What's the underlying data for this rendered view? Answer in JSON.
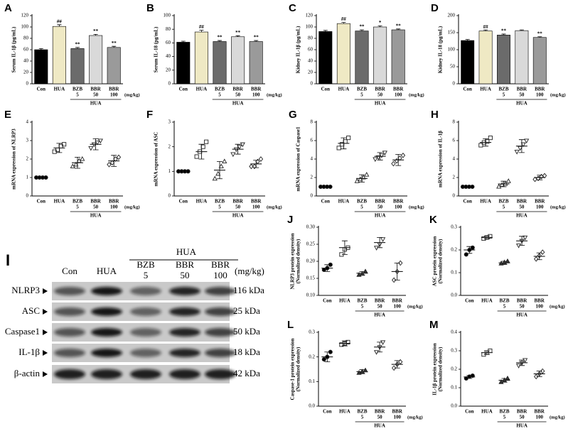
{
  "chart_data": [
    {
      "panel": "A",
      "type": "bar",
      "ylabel": "Serum IL-1β (pg/mL)",
      "categories": [
        "Con",
        "HUA",
        "BZB",
        "BBR",
        "BBR"
      ],
      "doses": [
        null,
        null,
        "5",
        "50",
        "100"
      ],
      "dose_unit": "(mg/kg)",
      "group_label": "HUA",
      "values": [
        60,
        101,
        62,
        85,
        64
      ],
      "errors": [
        2,
        3,
        2,
        2,
        2
      ],
      "annotations": [
        null,
        "##",
        "**",
        "**",
        "**"
      ],
      "colors": [
        "#000000",
        "#efe9c4",
        "#6b6b6b",
        "#d9d9d9",
        "#9a9a9a"
      ],
      "ylim": [
        0,
        120
      ],
      "yticks": [
        0,
        20,
        40,
        60,
        80,
        100,
        120
      ]
    },
    {
      "panel": "B",
      "type": "bar",
      "ylabel": "Serum IL-18 (pg/mL)",
      "categories": [
        "Con",
        "HUA",
        "BZB",
        "BBR",
        "BBR"
      ],
      "doses": [
        null,
        null,
        "5",
        "50",
        "100"
      ],
      "dose_unit": "(mg/kg)",
      "group_label": "HUA",
      "values": [
        61,
        76,
        62,
        69,
        62
      ],
      "errors": [
        1.5,
        2.5,
        1.5,
        1.5,
        1.5
      ],
      "annotations": [
        null,
        "##",
        "**",
        "**",
        "**"
      ],
      "colors": [
        "#000000",
        "#efe9c4",
        "#6b6b6b",
        "#d9d9d9",
        "#9a9a9a"
      ],
      "ylim": [
        0,
        100
      ],
      "yticks": [
        0,
        20,
        40,
        60,
        80,
        100
      ]
    },
    {
      "panel": "C",
      "type": "bar",
      "ylabel": "Kidney IL-1β (pg/mL)",
      "categories": [
        "Con",
        "HUA",
        "BZB",
        "BBR",
        "BBR"
      ],
      "doses": [
        null,
        null,
        "5",
        "50",
        "100"
      ],
      "dose_unit": "(mg/kg)",
      "group_label": "HUA",
      "values": [
        92,
        106,
        93,
        100,
        95
      ],
      "errors": [
        2,
        2,
        2,
        2,
        1.5
      ],
      "annotations": [
        null,
        "##",
        "**",
        "*",
        "**"
      ],
      "colors": [
        "#000000",
        "#efe9c4",
        "#6b6b6b",
        "#d9d9d9",
        "#9a9a9a"
      ],
      "ylim": [
        0,
        120
      ],
      "yticks": [
        0,
        20,
        40,
        60,
        80,
        100,
        120
      ]
    },
    {
      "panel": "D",
      "type": "bar",
      "ylabel": "Kidney IL-18 (pg/mL)",
      "categories": [
        "Con",
        "HUA",
        "BZB",
        "BBR",
        "BBR"
      ],
      "doses": [
        null,
        null,
        "5",
        "50",
        "100"
      ],
      "dose_unit": "(mg/kg)",
      "group_label": "HUA",
      "values": [
        127,
        155,
        143,
        156,
        136
      ],
      "errors": [
        3,
        3,
        3,
        2,
        2
      ],
      "annotations": [
        null,
        "##",
        "**",
        null,
        "**"
      ],
      "colors": [
        "#000000",
        "#efe9c4",
        "#6b6b6b",
        "#d9d9d9",
        "#9a9a9a"
      ],
      "ylim": [
        0,
        200
      ],
      "yticks": [
        0,
        50,
        100,
        150,
        200
      ]
    },
    {
      "panel": "E",
      "type": "dot",
      "ylabel": "mRNA expression of NLRP3",
      "categories": [
        "Con",
        "HUA",
        "BZB",
        "BBR",
        "BBR"
      ],
      "doses": [
        null,
        null,
        "5",
        "50",
        "100"
      ],
      "dose_unit": "(mg/kg)",
      "group_label": "HUA",
      "markers": [
        "circle",
        "square",
        "triangle",
        "triangle-down",
        "diamond"
      ],
      "marker_fills": [
        "#000000",
        "none",
        "none",
        "none",
        "none"
      ],
      "groups": [
        {
          "points": [
            1,
            1,
            1,
            1
          ],
          "mean": 1,
          "sd": 0
        },
        {
          "points": [
            2.4,
            2.5,
            2.7,
            2.8
          ],
          "mean": 2.6,
          "sd": 0.25
        },
        {
          "points": [
            1.6,
            1.7,
            1.9,
            2.0
          ],
          "mean": 1.8,
          "sd": 0.3
        },
        {
          "points": [
            2.6,
            2.8,
            2.9,
            3.0
          ],
          "mean": 2.8,
          "sd": 0.3
        },
        {
          "points": [
            1.7,
            1.8,
            2.0,
            2.1
          ],
          "mean": 1.9,
          "sd": 0.3
        }
      ],
      "ylim": [
        0,
        4
      ],
      "yticks": [
        0,
        1,
        2,
        3,
        4
      ]
    },
    {
      "panel": "F",
      "type": "dot",
      "ylabel": "mRNA expression of ASC",
      "categories": [
        "Con",
        "HUA",
        "BZB",
        "BBR",
        "BBR"
      ],
      "doses": [
        null,
        null,
        "5",
        "50",
        "100"
      ],
      "dose_unit": "(mg/kg)",
      "group_label": "HUA",
      "markers": [
        "circle",
        "square",
        "triangle",
        "triangle-down",
        "diamond"
      ],
      "marker_fills": [
        "#000000",
        "none",
        "none",
        "none",
        "none"
      ],
      "groups": [
        {
          "points": [
            1,
            1,
            1,
            1
          ],
          "mean": 1,
          "sd": 0
        },
        {
          "points": [
            1.6,
            1.8,
            2.0,
            2.2
          ],
          "mean": 1.8,
          "sd": 0.3
        },
        {
          "points": [
            0.7,
            0.9,
            1.2,
            1.4
          ],
          "mean": 1.05,
          "sd": 0.35
        },
        {
          "points": [
            1.7,
            1.9,
            2.0,
            2.1
          ],
          "mean": 1.9,
          "sd": 0.2
        },
        {
          "points": [
            1.2,
            1.2,
            1.4,
            1.5
          ],
          "mean": 1.3,
          "sd": 0.15
        }
      ],
      "ylim": [
        0,
        3
      ],
      "yticks": [
        0,
        1,
        2,
        3
      ]
    },
    {
      "panel": "G",
      "type": "dot",
      "ylabel": "mRNA expression of Caspase1",
      "categories": [
        "Con",
        "HUA",
        "BZB",
        "BBR",
        "BBR"
      ],
      "doses": [
        null,
        null,
        "5",
        "50",
        "100"
      ],
      "dose_unit": "(mg/kg)",
      "group_label": "HUA",
      "markers": [
        "circle",
        "square",
        "triangle",
        "triangle-down",
        "diamond"
      ],
      "marker_fills": [
        "#000000",
        "none",
        "none",
        "none",
        "none"
      ],
      "groups": [
        {
          "points": [
            1,
            1,
            1,
            1
          ],
          "mean": 1,
          "sd": 0
        },
        {
          "points": [
            5.2,
            5.6,
            5.9,
            6.3
          ],
          "mean": 5.7,
          "sd": 0.6
        },
        {
          "points": [
            1.6,
            1.8,
            2.0,
            2.3
          ],
          "mean": 1.9,
          "sd": 0.4
        },
        {
          "points": [
            4.0,
            4.2,
            4.4,
            4.7
          ],
          "mean": 4.3,
          "sd": 0.4
        },
        {
          "points": [
            3.5,
            3.8,
            4.1,
            4.4
          ],
          "mean": 3.9,
          "sd": 0.6
        }
      ],
      "ylim": [
        0,
        8
      ],
      "yticks": [
        0,
        2,
        4,
        6,
        8
      ]
    },
    {
      "panel": "H",
      "type": "dot",
      "ylabel": "mRNA expression of IL-1β",
      "categories": [
        "Con",
        "HUA",
        "BZB",
        "BBR",
        "BBR"
      ],
      "doses": [
        null,
        null,
        "5",
        "50",
        "100"
      ],
      "dose_unit": "(mg/kg)",
      "group_label": "HUA",
      "markers": [
        "circle",
        "square",
        "triangle",
        "triangle-down",
        "diamond"
      ],
      "marker_fills": [
        "#000000",
        "none",
        "none",
        "none",
        "none"
      ],
      "groups": [
        {
          "points": [
            1,
            1,
            1,
            1
          ],
          "mean": 1,
          "sd": 0
        },
        {
          "points": [
            5.5,
            5.8,
            5.9,
            6.3
          ],
          "mean": 5.8,
          "sd": 0.4
        },
        {
          "points": [
            1.0,
            1.2,
            1.3,
            1.6
          ],
          "mean": 1.3,
          "sd": 0.3
        },
        {
          "points": [
            4.8,
            5.2,
            5.6,
            6.0
          ],
          "mean": 5.4,
          "sd": 0.7
        },
        {
          "points": [
            1.8,
            1.9,
            2.1,
            2.2
          ],
          "mean": 2.0,
          "sd": 0.25
        }
      ],
      "ylim": [
        0,
        8
      ],
      "yticks": [
        0,
        2,
        4,
        6,
        8
      ]
    },
    {
      "panel": "J",
      "type": "dot",
      "ylabel": [
        "NLRP3 protein expression",
        "(Normalized density)"
      ],
      "categories": [
        "Con",
        "HUA",
        "BZB",
        "BBR",
        "BBR"
      ],
      "doses": [
        null,
        null,
        "5",
        "50",
        "100"
      ],
      "dose_unit": "(mg/kg)",
      "group_label": "HUA",
      "markers": [
        "circle",
        "square",
        "triangle",
        "triangle-down",
        "diamond"
      ],
      "marker_fills": [
        "#000000",
        "none",
        "#333333",
        "none",
        "none"
      ],
      "groups": [
        {
          "points": [
            0.175,
            0.18,
            0.19
          ],
          "mean": 0.18,
          "sd": 0.01
        },
        {
          "points": [
            0.22,
            0.235,
            0.24
          ],
          "mean": 0.24,
          "sd": 0.02
        },
        {
          "points": [
            0.16,
            0.163,
            0.17
          ],
          "mean": 0.165,
          "sd": 0.005
        },
        {
          "points": [
            0.24,
            0.25,
            0.265
          ],
          "mean": 0.255,
          "sd": 0.015
        },
        {
          "points": [
            0.145,
            0.17,
            0.195
          ],
          "mean": 0.17,
          "sd": 0.025
        }
      ],
      "ylim": [
        0.1,
        0.3
      ],
      "yticks": [
        {
          "value": 0.1,
          "label": "0.10"
        },
        0.15,
        {
          "value": 0.2,
          "label": "0.20"
        },
        0.25,
        {
          "value": 0.3,
          "label": "0.30"
        }
      ]
    },
    {
      "panel": "K",
      "type": "dot",
      "ylabel": [
        "ASC protein expression",
        "(Normalized density)"
      ],
      "categories": [
        "Con",
        "HUA",
        "BZB",
        "BBR",
        "BBR"
      ],
      "doses": [
        null,
        null,
        "5",
        "50",
        "100"
      ],
      "dose_unit": "(mg/kg)",
      "group_label": "HUA",
      "markers": [
        "circle",
        "square",
        "triangle",
        "triangle-down",
        "diamond"
      ],
      "marker_fills": [
        "#000000",
        "none",
        "#333333",
        "none",
        "none"
      ],
      "groups": [
        {
          "points": [
            0.18,
            0.2,
            0.21
          ],
          "mean": 0.2,
          "sd": 0.015
        },
        {
          "points": [
            0.25,
            0.255,
            0.26
          ],
          "mean": 0.255,
          "sd": 0.007
        },
        {
          "points": [
            0.14,
            0.145,
            0.15
          ],
          "mean": 0.143,
          "sd": 0.007
        },
        {
          "points": [
            0.22,
            0.24,
            0.255
          ],
          "mean": 0.24,
          "sd": 0.02
        },
        {
          "points": [
            0.16,
            0.175,
            0.19
          ],
          "mean": 0.172,
          "sd": 0.015
        }
      ],
      "ylim": [
        0,
        0.3
      ],
      "yticks": [
        {
          "value": 0,
          "label": "0.0"
        },
        0.1,
        0.2,
        0.3
      ]
    },
    {
      "panel": "L",
      "type": "dot",
      "ylabel": [
        "Caspase-1 protein expression",
        "(Normalized density)"
      ],
      "categories": [
        "Con",
        "HUA",
        "BZB",
        "BBR",
        "BBR"
      ],
      "doses": [
        null,
        null,
        "5",
        "50",
        "100"
      ],
      "dose_unit": "(mg/kg)",
      "group_label": "HUA",
      "markers": [
        "circle",
        "square",
        "triangle",
        "triangle-down",
        "diamond"
      ],
      "marker_fills": [
        "#000000",
        "none",
        "#333333",
        "none",
        "none"
      ],
      "groups": [
        {
          "points": [
            0.19,
            0.2,
            0.22
          ],
          "mean": 0.2,
          "sd": 0.02
        },
        {
          "points": [
            0.25,
            0.255,
            0.26
          ],
          "mean": 0.255,
          "sd": 0.01
        },
        {
          "points": [
            0.135,
            0.14,
            0.145
          ],
          "mean": 0.14,
          "sd": 0.008
        },
        {
          "points": [
            0.22,
            0.24,
            0.26
          ],
          "mean": 0.24,
          "sd": 0.02
        },
        {
          "points": [
            0.155,
            0.17,
            0.18
          ],
          "mean": 0.17,
          "sd": 0.015
        }
      ],
      "ylim": [
        0,
        0.3
      ],
      "yticks": [
        {
          "value": 0,
          "label": "0.0"
        },
        0.1,
        0.2,
        0.3
      ]
    },
    {
      "panel": "M",
      "type": "dot",
      "ylabel": [
        "IL-1β protein expression",
        "(Normalized density)"
      ],
      "categories": [
        "Con",
        "HUA",
        "BZB",
        "BBR",
        "BBR"
      ],
      "doses": [
        null,
        null,
        "5",
        "50",
        "100"
      ],
      "dose_unit": "(mg/kg)",
      "group_label": "HUA",
      "markers": [
        "circle",
        "square",
        "triangle",
        "triangle-down",
        "diamond"
      ],
      "marker_fills": [
        "#000000",
        "none",
        "#333333",
        "none",
        "none"
      ],
      "groups": [
        {
          "points": [
            0.15,
            0.16,
            0.165
          ],
          "mean": 0.158,
          "sd": 0.008
        },
        {
          "points": [
            0.28,
            0.29,
            0.3
          ],
          "mean": 0.29,
          "sd": 0.01
        },
        {
          "points": [
            0.13,
            0.14,
            0.15
          ],
          "mean": 0.14,
          "sd": 0.01
        },
        {
          "points": [
            0.22,
            0.235,
            0.25
          ],
          "mean": 0.235,
          "sd": 0.015
        },
        {
          "points": [
            0.16,
            0.175,
            0.19
          ],
          "mean": 0.175,
          "sd": 0.015
        }
      ],
      "ylim": [
        0,
        0.4
      ],
      "yticks": [
        {
          "value": 0,
          "label": "0.0"
        },
        0.1,
        0.2,
        0.3,
        0.4
      ]
    }
  ],
  "blot": {
    "panel": "I",
    "group_label": "HUA",
    "dose_unit": "(mg/kg)",
    "columns": [
      "Con",
      "HUA",
      "BZB",
      "BBR",
      "BBR"
    ],
    "doses": [
      null,
      null,
      "5",
      "50",
      "100"
    ],
    "rows": [
      {
        "label": "NLRP3",
        "size": "116 kDa"
      },
      {
        "label": "ASC",
        "size": "25 kDa"
      },
      {
        "label": "Caspase1",
        "size": "50 kDa"
      },
      {
        "label": "IL-1β",
        "size": "18 kDa"
      },
      {
        "label": "β-actin",
        "size": "42 kDa"
      }
    ]
  }
}
